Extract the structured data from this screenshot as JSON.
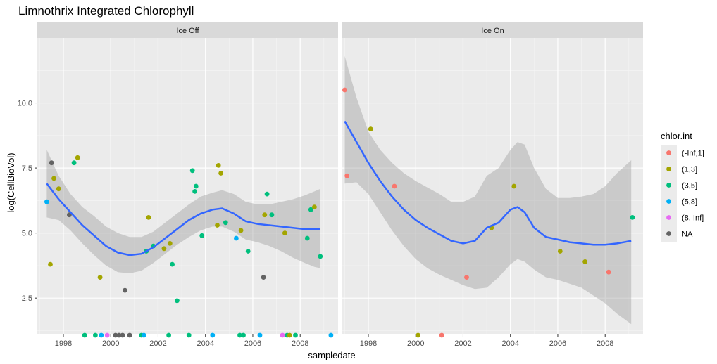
{
  "chart_data": {
    "type": "scatter",
    "title": "Limnothrix Integrated Chlorophyll",
    "xlabel": "sampledate",
    "ylabel": "log(CellBioVol)",
    "xlim": [
      1996.9,
      2009.6
    ],
    "ylim": [
      1.1,
      12.5
    ],
    "x_ticks": [
      1998,
      2000,
      2002,
      2004,
      2006,
      2008
    ],
    "x_tick_labels": [
      "1998",
      "2000",
      "2002",
      "2004",
      "2006",
      "2008"
    ],
    "y_ticks": [
      2.5,
      5.0,
      7.5,
      10.0
    ],
    "y_tick_labels": [
      "2.5",
      "5.0",
      "7.5",
      "10.0"
    ],
    "grid": true,
    "legend_position": "right",
    "legend_title": "chlor.int",
    "legend": [
      {
        "key": "(-Inf,1]",
        "label": "(-Inf,1]",
        "color": "#F8766D"
      },
      {
        "key": "(1,3]",
        "label": "(1,3]",
        "color": "#A3A500"
      },
      {
        "key": "(3,5]",
        "label": "(3,5]",
        "color": "#00BF7D"
      },
      {
        "key": "(5,8]",
        "label": "(5,8]",
        "color": "#00B0F6"
      },
      {
        "key": "(8, Inf]",
        "label": "(8, Inf]",
        "color": "#E76BF3"
      },
      {
        "key": "NA",
        "label": "NA",
        "color": "#636363"
      }
    ],
    "smooth_color": "#3366FF",
    "panels": [
      {
        "strip": "Ice Off",
        "points": [
          {
            "x": 1997.3,
            "y": 6.2,
            "g": "(5,8]"
          },
          {
            "x": 1997.45,
            "y": 3.8,
            "g": "(1,3]"
          },
          {
            "x": 1997.5,
            "y": 7.7,
            "g": "NA"
          },
          {
            "x": 1997.6,
            "y": 7.1,
            "g": "(1,3]"
          },
          {
            "x": 1997.8,
            "y": 6.7,
            "g": "(1,3]"
          },
          {
            "x": 1998.25,
            "y": 5.7,
            "g": "NA"
          },
          {
            "x": 1998.45,
            "y": 7.7,
            "g": "(3,5]"
          },
          {
            "x": 1998.6,
            "y": 7.9,
            "g": "(1,3]"
          },
          {
            "x": 1998.9,
            "y": 1.0,
            "g": "(3,5]"
          },
          {
            "x": 1999.35,
            "y": 1.0,
            "g": "(3,5]"
          },
          {
            "x": 1999.55,
            "y": 3.3,
            "g": "(1,3]"
          },
          {
            "x": 1999.6,
            "y": 1.0,
            "g": "(5,8]"
          },
          {
            "x": 1999.85,
            "y": 1.0,
            "g": "(8, Inf]"
          },
          {
            "x": 2000.2,
            "y": 1.0,
            "g": "NA"
          },
          {
            "x": 2000.35,
            "y": 1.0,
            "g": "NA"
          },
          {
            "x": 2000.5,
            "y": 1.0,
            "g": "NA"
          },
          {
            "x": 2000.6,
            "y": 2.8,
            "g": "NA"
          },
          {
            "x": 2000.8,
            "y": 1.0,
            "g": "NA"
          },
          {
            "x": 2001.3,
            "y": 1.0,
            "g": "(3,5]"
          },
          {
            "x": 2001.4,
            "y": 1.0,
            "g": "(5,8]"
          },
          {
            "x": 2001.5,
            "y": 4.3,
            "g": "(3,5]"
          },
          {
            "x": 2001.6,
            "y": 5.6,
            "g": "(1,3]"
          },
          {
            "x": 2001.8,
            "y": 4.5,
            "g": "(3,5]"
          },
          {
            "x": 2002.25,
            "y": 4.4,
            "g": "(1,3]"
          },
          {
            "x": 2002.45,
            "y": 1.0,
            "g": "(3,5]"
          },
          {
            "x": 2002.5,
            "y": 4.6,
            "g": "(1,3]"
          },
          {
            "x": 2002.6,
            "y": 3.8,
            "g": "(3,5]"
          },
          {
            "x": 2002.8,
            "y": 2.4,
            "g": "(3,5]"
          },
          {
            "x": 2003.3,
            "y": 1.0,
            "g": "(3,5]"
          },
          {
            "x": 2003.45,
            "y": 7.4,
            "g": "(3,5]"
          },
          {
            "x": 2003.55,
            "y": 6.6,
            "g": "(3,5]"
          },
          {
            "x": 2003.6,
            "y": 6.8,
            "g": "(3,5]"
          },
          {
            "x": 2003.85,
            "y": 4.9,
            "g": "(3,5]"
          },
          {
            "x": 2004.3,
            "y": 1.0,
            "g": "(5,8]"
          },
          {
            "x": 2004.5,
            "y": 5.3,
            "g": "(1,3]"
          },
          {
            "x": 2004.55,
            "y": 7.6,
            "g": "(1,3]"
          },
          {
            "x": 2004.65,
            "y": 7.3,
            "g": "(1,3]"
          },
          {
            "x": 2004.85,
            "y": 5.4,
            "g": "(3,5]"
          },
          {
            "x": 2005.3,
            "y": 4.8,
            "g": "(5,8]"
          },
          {
            "x": 2005.45,
            "y": 1.0,
            "g": "(3,5]"
          },
          {
            "x": 2005.5,
            "y": 5.1,
            "g": "(1,3]"
          },
          {
            "x": 2005.6,
            "y": 1.0,
            "g": "(3,5]"
          },
          {
            "x": 2005.8,
            "y": 4.3,
            "g": "(3,5]"
          },
          {
            "x": 2006.3,
            "y": 1.0,
            "g": "(5,8]"
          },
          {
            "x": 2006.45,
            "y": 3.3,
            "g": "NA"
          },
          {
            "x": 2006.5,
            "y": 5.7,
            "g": "(1,3]"
          },
          {
            "x": 2006.6,
            "y": 6.5,
            "g": "(3,5]"
          },
          {
            "x": 2006.8,
            "y": 5.7,
            "g": "(3,5]"
          },
          {
            "x": 2007.25,
            "y": 1.0,
            "g": "(8, Inf]"
          },
          {
            "x": 2007.35,
            "y": 5.0,
            "g": "(1,3]"
          },
          {
            "x": 2007.45,
            "y": 1.0,
            "g": "(3,5]"
          },
          {
            "x": 2007.55,
            "y": 1.0,
            "g": "(1,3]"
          },
          {
            "x": 2007.8,
            "y": 1.0,
            "g": "(3,5]"
          },
          {
            "x": 2008.3,
            "y": 4.8,
            "g": "(3,5]"
          },
          {
            "x": 2008.45,
            "y": 5.9,
            "g": "(3,5]"
          },
          {
            "x": 2008.6,
            "y": 6.0,
            "g": "(1,3]"
          },
          {
            "x": 2008.85,
            "y": 4.1,
            "g": "(3,5]"
          },
          {
            "x": 2009.3,
            "y": 1.0,
            "g": "(5,8]"
          }
        ],
        "smooth": {
          "x": [
            1997.3,
            1997.8,
            1998.3,
            1998.8,
            1999.3,
            1999.8,
            2000.3,
            2000.8,
            2001.3,
            2001.8,
            2002.3,
            2002.8,
            2003.3,
            2003.8,
            2004.3,
            2004.7,
            2005.2,
            2005.7,
            2006.2,
            2006.7,
            2007.2,
            2007.7,
            2008.2,
            2008.6,
            2008.85
          ],
          "y": [
            6.9,
            6.3,
            5.8,
            5.3,
            4.9,
            4.5,
            4.25,
            4.15,
            4.2,
            4.45,
            4.8,
            5.15,
            5.5,
            5.75,
            5.9,
            5.95,
            5.75,
            5.45,
            5.35,
            5.3,
            5.25,
            5.2,
            5.15,
            5.15,
            5.15
          ],
          "lo": [
            5.6,
            5.5,
            5.1,
            4.6,
            4.15,
            3.75,
            3.5,
            3.45,
            3.55,
            3.85,
            4.2,
            4.55,
            4.85,
            5.1,
            5.25,
            5.25,
            5.05,
            4.75,
            4.65,
            4.5,
            4.3,
            4.05,
            3.85,
            3.7,
            3.65
          ],
          "hi": [
            8.2,
            7.2,
            6.5,
            6.0,
            5.65,
            5.25,
            5.0,
            4.85,
            4.85,
            5.05,
            5.4,
            5.75,
            6.1,
            6.4,
            6.55,
            6.65,
            6.5,
            6.2,
            6.1,
            6.1,
            6.2,
            6.3,
            6.45,
            6.6,
            6.7
          ]
        }
      },
      {
        "strip": "Ice On",
        "points": [
          {
            "x": 1997.0,
            "y": 10.5,
            "g": "(-Inf,1]"
          },
          {
            "x": 1997.1,
            "y": 7.2,
            "g": "(-Inf,1]"
          },
          {
            "x": 1998.1,
            "y": 9.0,
            "g": "(1,3]"
          },
          {
            "x": 1999.1,
            "y": 6.8,
            "g": "(-Inf,1]"
          },
          {
            "x": 2000.1,
            "y": 1.0,
            "g": "(1,3]"
          },
          {
            "x": 2001.1,
            "y": 1.0,
            "g": "(-Inf,1]"
          },
          {
            "x": 2002.15,
            "y": 3.3,
            "g": "(-Inf,1]"
          },
          {
            "x": 2003.2,
            "y": 5.2,
            "g": "(1,3]"
          },
          {
            "x": 2004.15,
            "y": 6.8,
            "g": "(1,3]"
          },
          {
            "x": 2006.1,
            "y": 4.3,
            "g": "(1,3]"
          },
          {
            "x": 2007.15,
            "y": 3.9,
            "g": "(1,3]"
          },
          {
            "x": 2008.15,
            "y": 3.5,
            "g": "(-Inf,1]"
          },
          {
            "x": 2009.15,
            "y": 5.6,
            "g": "(3,5]"
          }
        ],
        "smooth": {
          "x": [
            1997.0,
            1997.5,
            1998.0,
            1998.5,
            1999.0,
            1999.5,
            2000.0,
            2000.5,
            2001.0,
            2001.5,
            2002.0,
            2002.5,
            2003.0,
            2003.5,
            2004.0,
            2004.3,
            2004.6,
            2005.0,
            2005.5,
            2006.0,
            2006.5,
            2007.0,
            2007.5,
            2008.0,
            2008.5,
            2009.1
          ],
          "y": [
            9.3,
            8.5,
            7.7,
            7.0,
            6.4,
            5.9,
            5.5,
            5.2,
            4.95,
            4.7,
            4.6,
            4.7,
            5.2,
            5.4,
            5.9,
            6.0,
            5.8,
            5.2,
            4.85,
            4.75,
            4.65,
            4.6,
            4.55,
            4.55,
            4.6,
            4.7
          ],
          "lo": [
            6.9,
            6.95,
            6.5,
            5.8,
            5.1,
            4.5,
            4.0,
            3.65,
            3.4,
            3.2,
            3.0,
            2.85,
            2.9,
            3.3,
            3.8,
            4.0,
            3.9,
            3.6,
            3.3,
            3.2,
            3.05,
            2.9,
            2.6,
            2.3,
            1.9,
            1.5
          ],
          "hi": [
            11.8,
            10.2,
            8.9,
            8.2,
            7.7,
            7.3,
            7.0,
            6.75,
            6.5,
            6.2,
            6.2,
            6.4,
            7.2,
            7.5,
            8.2,
            8.5,
            8.4,
            7.5,
            6.7,
            6.35,
            6.35,
            6.4,
            6.5,
            6.8,
            7.3,
            7.8
          ]
        }
      }
    ]
  }
}
